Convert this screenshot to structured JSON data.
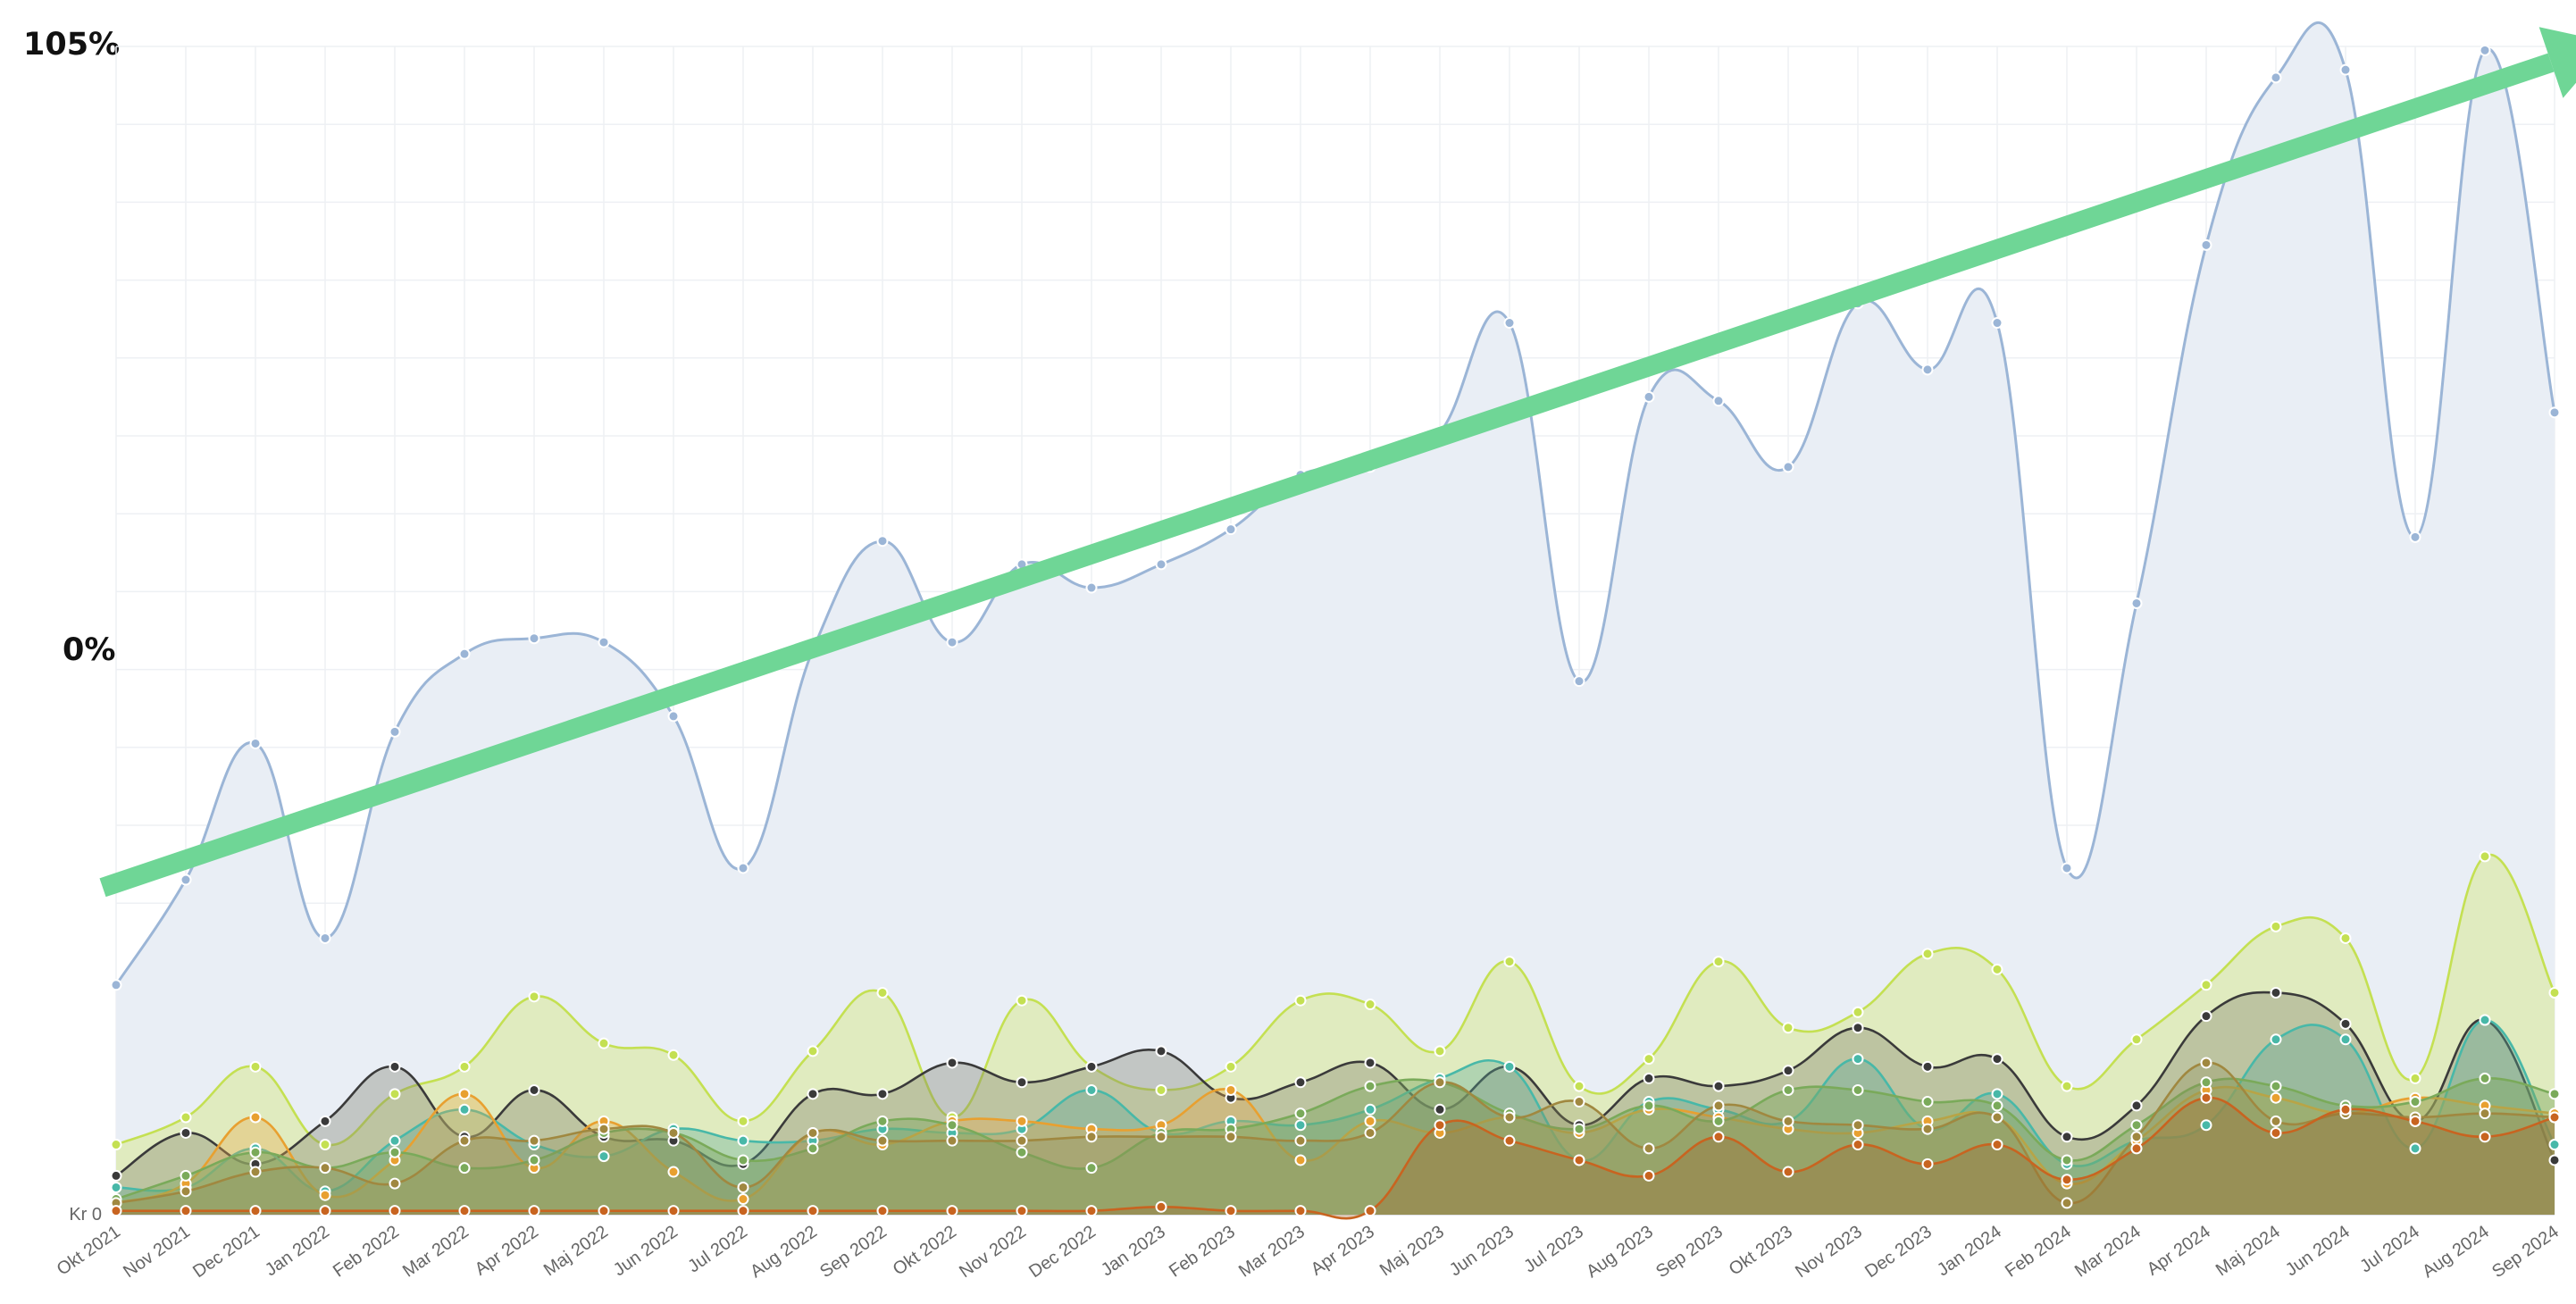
{
  "labels": {
    "top": "105%",
    "middle": "0%",
    "zero": "Kr 0"
  },
  "colors": {
    "trend_arrow": "#6fd696",
    "grid": "#eef0f4"
  },
  "chart_data": {
    "type": "area",
    "title": "",
    "xlabel": "",
    "ylabel": "",
    "ylim": [
      0,
      1500
    ],
    "grid": true,
    "legend": "none",
    "categories": [
      "Okt 2021",
      "Nov 2021",
      "Dec 2021",
      "Jan 2022",
      "Feb 2022",
      "Mar 2022",
      "Apr 2022",
      "Maj 2022",
      "Jun 2022",
      "Jul 2022",
      "Aug 2022",
      "Sep 2022",
      "Okt 2022",
      "Nov 2022",
      "Dec 2022",
      "Jan 2023",
      "Feb 2023",
      "Mar 2023",
      "Apr 2023",
      "Maj 2023",
      "Jun 2023",
      "Jul 2023",
      "Aug 2023",
      "Sep 2023",
      "Okt 2023",
      "Nov 2023",
      "Dec 2023",
      "Jan 2024",
      "Feb 2024",
      "Mar 2024",
      "Apr 2024",
      "Maj 2024",
      "Jun 2024",
      "Jul 2024",
      "Aug 2024",
      "Sep 2024"
    ],
    "series": [
      {
        "color": "#9bb5d6",
        "fill": "#e9eef5",
        "fill_opacity": 1,
        "values": [
          295,
          430,
          605,
          355,
          620,
          720,
          740,
          735,
          640,
          445,
          725,
          865,
          735,
          835,
          805,
          835,
          880,
          950,
          960,
          1005,
          1145,
          685,
          1050,
          1045,
          960,
          1170,
          1085,
          1145,
          445,
          785,
          1245,
          1460,
          1470,
          870,
          1495,
          1030
        ]
      },
      {
        "color": "#c4e052",
        "fill": "#dce9a8",
        "fill_opacity": 0.7,
        "values": [
          90,
          125,
          190,
          90,
          155,
          190,
          280,
          220,
          205,
          120,
          210,
          285,
          125,
          275,
          190,
          160,
          190,
          275,
          270,
          210,
          325,
          165,
          200,
          325,
          240,
          260,
          335,
          315,
          165,
          225,
          295,
          370,
          355,
          175,
          460,
          285
        ]
      },
      {
        "color": "#3a3a3a",
        "fill": "#7a7a6a",
        "fill_opacity": 0.35,
        "values": [
          50,
          105,
          65,
          120,
          190,
          100,
          160,
          100,
          95,
          65,
          155,
          155,
          195,
          170,
          190,
          210,
          150,
          170,
          195,
          135,
          190,
          115,
          175,
          165,
          185,
          240,
          190,
          200,
          100,
          140,
          255,
          285,
          245,
          120,
          250,
          70
        ]
      },
      {
        "color": "#48b8a8",
        "fill": "#5aaa98",
        "fill_opacity": 0.35,
        "values": [
          35,
          35,
          85,
          30,
          95,
          135,
          90,
          75,
          110,
          95,
          95,
          110,
          105,
          110,
          160,
          105,
          120,
          115,
          135,
          175,
          190,
          70,
          145,
          135,
          120,
          200,
          110,
          155,
          65,
          95,
          115,
          225,
          225,
          85,
          250,
          90
        ]
      },
      {
        "color": "#e8a030",
        "fill": "#e8a84a",
        "fill_opacity": 0.35,
        "values": [
          15,
          40,
          125,
          25,
          70,
          155,
          60,
          120,
          55,
          20,
          105,
          90,
          120,
          120,
          110,
          115,
          160,
          70,
          120,
          105,
          125,
          105,
          135,
          125,
          110,
          105,
          120,
          125,
          40,
          95,
          160,
          150,
          130,
          150,
          140,
          130
        ]
      },
      {
        "color": "#7aaa5a",
        "fill": "#7fa861",
        "fill_opacity": 0.45,
        "values": [
          20,
          50,
          80,
          60,
          80,
          60,
          70,
          105,
          105,
          70,
          85,
          120,
          115,
          80,
          60,
          105,
          110,
          130,
          165,
          170,
          130,
          110,
          140,
          120,
          160,
          160,
          145,
          140,
          70,
          115,
          170,
          165,
          140,
          145,
          175,
          155
        ]
      },
      {
        "color": "#a08840",
        "fill": "#8a8a55",
        "fill_opacity": 0.3,
        "values": [
          15,
          30,
          55,
          60,
          40,
          95,
          95,
          110,
          105,
          35,
          105,
          95,
          95,
          95,
          100,
          100,
          100,
          95,
          105,
          170,
          125,
          145,
          85,
          140,
          120,
          115,
          110,
          125,
          15,
          100,
          195,
          120,
          130,
          125,
          130,
          125
        ]
      },
      {
        "color": "#c86420",
        "fill": "#9a6428",
        "fill_opacity": 0.3,
        "values": [
          5,
          5,
          5,
          5,
          5,
          5,
          5,
          5,
          5,
          5,
          5,
          5,
          5,
          5,
          5,
          10,
          5,
          5,
          5,
          115,
          95,
          70,
          50,
          100,
          55,
          90,
          65,
          90,
          45,
          85,
          150,
          105,
          135,
          120,
          100,
          125
        ]
      }
    ],
    "trend_arrow": {
      "from": [
        0,
        420
      ],
      "to": [
        35.8,
        1505
      ]
    }
  }
}
